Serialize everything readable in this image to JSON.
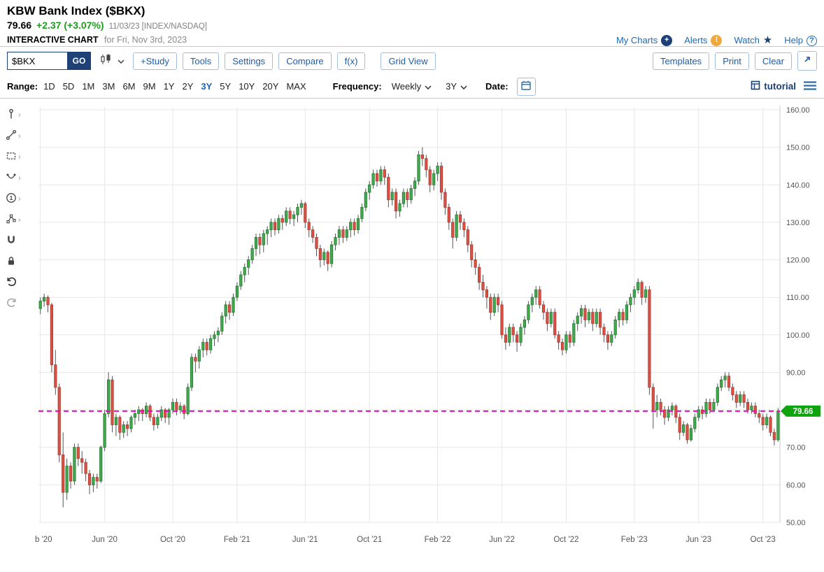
{
  "header": {
    "title": "KBW Bank Index ($BKX)",
    "price": "79.66",
    "change": "+2.37 (+3.07%)",
    "quote_meta": "11/03/23 [INDEX/NASDAQ]",
    "chart_label": "INTERACTIVE CHART",
    "chart_sublabel": "for Fri, Nov 3rd, 2023",
    "links": [
      {
        "label": "My Charts",
        "icon": "plus-circle-icon"
      },
      {
        "label": "Alerts",
        "icon": "alert-icon"
      },
      {
        "label": "Watch",
        "icon": "star-icon"
      },
      {
        "label": "Help",
        "icon": "help-icon"
      }
    ]
  },
  "toolbar": {
    "symbol_value": "$BKX",
    "go_label": "GO",
    "left_buttons": [
      "+Study",
      "Tools",
      "Settings",
      "Compare",
      "f(x)"
    ],
    "view_buttons": [
      "Grid View"
    ],
    "right_buttons": [
      "Templates",
      "Print",
      "Clear"
    ]
  },
  "rangebar": {
    "range_label": "Range:",
    "options": [
      "1D",
      "5D",
      "1M",
      "3M",
      "6M",
      "9M",
      "1Y",
      "2Y",
      "3Y",
      "5Y",
      "10Y",
      "20Y",
      "MAX"
    ],
    "selected": "3Y",
    "frequency_label": "Frequency:",
    "frequency_value": "Weekly",
    "period_value": "3Y",
    "date_label": "Date:",
    "tutorial_label": "tutorial"
  },
  "sidebar": {
    "tools": [
      {
        "icon": "annotation-tool-icon",
        "chevron": true
      },
      {
        "icon": "trendline-tool-icon",
        "chevron": true
      },
      {
        "icon": "shape-tool-icon",
        "chevron": true
      },
      {
        "icon": "arc-tool-icon",
        "chevron": true
      },
      {
        "icon": "number-annotation-icon",
        "chevron": true
      },
      {
        "icon": "pattern-tool-icon",
        "chevron": true
      },
      {
        "icon": "magnet-icon",
        "chevron": false
      },
      {
        "icon": "lock-icon",
        "chevron": false
      },
      {
        "icon": "undo-icon",
        "chevron": false
      },
      {
        "icon": "redo-icon",
        "chevron": false
      }
    ]
  },
  "chart_data": {
    "type": "candlestick",
    "title": "KBW Bank Index ($BKX)",
    "frequency": "Weekly",
    "range": "3Y",
    "ylim": [
      50,
      160
    ],
    "y_ticks": [
      160,
      150,
      140,
      130,
      120,
      110,
      100,
      90,
      80,
      70,
      60,
      50
    ],
    "x_ticks": [
      {
        "i": 0,
        "label": "b '20"
      },
      {
        "i": 17,
        "label": "Jun '20"
      },
      {
        "i": 35,
        "label": "Oct '20"
      },
      {
        "i": 52,
        "label": "Feb '21"
      },
      {
        "i": 70,
        "label": "Jun '21"
      },
      {
        "i": 87,
        "label": "Oct '21"
      },
      {
        "i": 105,
        "label": "Feb '22"
      },
      {
        "i": 122,
        "label": "Jun '22"
      },
      {
        "i": 139,
        "label": "Oct '22"
      },
      {
        "i": 157,
        "label": "Feb '23"
      },
      {
        "i": 174,
        "label": "Jun '23"
      },
      {
        "i": 191,
        "label": "Oct '23"
      }
    ],
    "last_price": 79.66,
    "last_price_line": {
      "value": 79.66,
      "color": "#f500cc",
      "label": "79.66",
      "label_bg": "#10a310"
    },
    "colors": {
      "up_fill": "#44a94f",
      "up_stroke": "#1e7a2e",
      "down_fill": "#dd5145",
      "down_stroke": "#a63a30",
      "wick": "#555555",
      "grid": "#e7e7e7",
      "axis_text": "#555555",
      "border": "#cccccc"
    },
    "candles": [
      [
        107,
        110,
        105.5,
        109
      ],
      [
        109,
        111,
        107.5,
        110
      ],
      [
        110,
        110.5,
        106,
        108
      ],
      [
        108,
        108.5,
        90,
        92
      ],
      [
        92,
        96,
        84,
        86
      ],
      [
        86,
        87,
        66,
        68
      ],
      [
        68,
        74,
        54,
        58
      ],
      [
        58,
        67,
        56,
        65
      ],
      [
        65,
        66,
        59,
        61
      ],
      [
        61,
        71,
        60,
        70
      ],
      [
        70,
        71,
        65,
        67
      ],
      [
        67,
        69,
        63,
        66
      ],
      [
        66,
        67,
        61,
        63
      ],
      [
        63,
        64,
        57.5,
        60
      ],
      [
        60,
        63,
        58,
        62
      ],
      [
        62,
        63,
        59,
        61
      ],
      [
        61,
        70.5,
        60.5,
        70
      ],
      [
        70,
        80,
        69,
        79
      ],
      [
        79,
        90,
        78,
        88
      ],
      [
        88,
        89,
        74,
        76
      ],
      [
        76,
        79,
        73,
        78
      ],
      [
        78,
        78.5,
        72,
        74
      ],
      [
        74,
        77,
        72.5,
        76
      ],
      [
        76,
        77,
        73,
        75
      ],
      [
        75,
        78.5,
        74,
        78
      ],
      [
        78,
        80,
        76,
        79
      ],
      [
        79,
        81,
        77,
        80
      ],
      [
        80,
        80.5,
        77,
        79
      ],
      [
        79,
        82,
        78,
        81
      ],
      [
        81,
        81.5,
        77,
        78
      ],
      [
        78,
        79,
        74.5,
        76
      ],
      [
        76,
        79,
        75,
        78
      ],
      [
        78,
        81,
        77,
        80
      ],
      [
        80,
        80.5,
        76.5,
        78
      ],
      [
        78,
        80.5,
        76,
        80
      ],
      [
        80,
        83,
        79,
        82
      ],
      [
        82,
        83,
        78.5,
        80
      ],
      [
        80,
        82,
        79,
        81
      ],
      [
        81,
        81.5,
        77.5,
        79
      ],
      [
        79,
        87,
        78.5,
        86
      ],
      [
        86,
        95,
        85,
        94
      ],
      [
        94,
        95,
        90,
        93
      ],
      [
        93,
        97,
        91,
        96
      ],
      [
        96,
        99,
        94,
        98
      ],
      [
        98,
        99,
        94.5,
        96
      ],
      [
        96,
        100,
        95,
        99
      ],
      [
        99,
        101,
        97,
        100
      ],
      [
        100,
        102,
        98,
        101
      ],
      [
        101,
        106,
        100,
        105
      ],
      [
        105,
        109,
        103,
        108
      ],
      [
        108,
        109,
        104,
        106
      ],
      [
        106,
        111,
        105,
        110
      ],
      [
        110,
        114,
        109,
        113
      ],
      [
        113,
        117,
        112,
        116
      ],
      [
        116,
        119,
        114,
        118
      ],
      [
        118,
        121,
        116,
        120
      ],
      [
        120,
        124,
        119,
        123
      ],
      [
        123,
        127,
        121,
        126
      ],
      [
        126,
        127,
        121.5,
        124
      ],
      [
        124,
        128,
        122,
        127
      ],
      [
        127,
        129,
        124,
        128
      ],
      [
        128,
        131,
        126,
        130
      ],
      [
        130,
        131,
        126.5,
        128
      ],
      [
        128,
        132,
        127,
        131
      ],
      [
        131,
        132,
        128,
        130
      ],
      [
        130,
        134,
        129,
        133
      ],
      [
        133,
        134,
        129.5,
        131
      ],
      [
        131,
        133,
        129,
        132
      ],
      [
        132,
        135,
        130,
        134
      ],
      [
        134,
        136,
        132,
        135
      ],
      [
        135,
        135.5,
        128.5,
        130
      ],
      [
        130,
        131,
        126,
        128
      ],
      [
        128,
        129,
        124.5,
        126
      ],
      [
        126,
        127,
        121,
        123
      ],
      [
        123,
        124,
        118,
        120
      ],
      [
        120,
        123,
        118.5,
        122
      ],
      [
        122,
        122.5,
        117,
        119
      ],
      [
        119,
        125,
        118,
        124
      ],
      [
        124,
        127,
        122.5,
        126
      ],
      [
        126,
        129,
        124,
        128
      ],
      [
        128,
        129,
        124.5,
        126
      ],
      [
        126,
        129,
        125,
        128
      ],
      [
        128,
        131,
        126,
        130
      ],
      [
        130,
        131,
        126.5,
        128
      ],
      [
        128,
        132,
        127,
        131
      ],
      [
        131,
        135,
        130,
        134
      ],
      [
        134,
        139,
        133,
        138
      ],
      [
        138,
        141,
        136,
        140
      ],
      [
        140,
        144,
        139,
        143
      ],
      [
        143,
        144,
        139.5,
        141
      ],
      [
        141,
        145,
        140,
        144
      ],
      [
        144,
        145,
        140,
        142
      ],
      [
        142,
        143,
        134,
        136
      ],
      [
        136,
        139,
        134.5,
        138
      ],
      [
        138,
        139,
        131,
        133
      ],
      [
        133,
        136,
        131.5,
        135
      ],
      [
        135,
        139,
        134,
        138
      ],
      [
        138,
        139,
        134,
        136
      ],
      [
        136,
        140,
        135,
        139
      ],
      [
        139,
        142,
        137,
        141
      ],
      [
        141,
        149,
        140,
        148
      ],
      [
        148,
        150,
        145,
        147
      ],
      [
        147,
        148,
        142,
        144
      ],
      [
        144,
        145,
        138,
        140
      ],
      [
        140,
        144,
        138.5,
        143
      ],
      [
        143,
        146,
        141,
        145
      ],
      [
        145,
        146,
        136,
        138
      ],
      [
        138,
        139,
        132,
        134
      ],
      [
        134,
        135,
        128,
        130
      ],
      [
        130,
        131,
        123,
        126
      ],
      [
        126,
        133,
        125,
        132
      ],
      [
        132,
        133,
        128,
        130
      ],
      [
        130,
        131,
        126,
        128
      ],
      [
        128,
        129,
        122,
        124
      ],
      [
        124,
        125,
        118,
        120
      ],
      [
        120,
        122,
        116,
        118
      ],
      [
        118,
        119,
        112,
        114
      ],
      [
        114,
        116,
        110,
        112
      ],
      [
        112,
        113,
        107,
        110
      ],
      [
        110,
        111,
        104,
        106
      ],
      [
        106,
        111,
        105,
        110
      ],
      [
        110,
        111,
        106,
        108
      ],
      [
        108,
        109,
        99,
        100
      ],
      [
        100,
        102,
        96,
        98
      ],
      [
        98,
        103,
        97,
        102
      ],
      [
        102,
        103,
        98,
        100
      ],
      [
        100,
        101,
        95.5,
        98
      ],
      [
        98,
        103,
        97,
        102
      ],
      [
        102,
        105,
        100,
        104
      ],
      [
        104,
        109,
        103,
        108
      ],
      [
        108,
        111,
        106,
        110
      ],
      [
        110,
        113,
        108,
        112
      ],
      [
        112,
        113,
        107,
        108
      ],
      [
        108,
        109,
        104,
        106
      ],
      [
        106,
        107,
        101,
        103
      ],
      [
        103,
        107,
        102,
        106
      ],
      [
        106,
        107,
        99,
        100
      ],
      [
        100,
        101,
        96,
        98
      ],
      [
        98,
        99,
        94.5,
        96
      ],
      [
        96,
        101,
        95,
        100
      ],
      [
        100,
        101,
        96.5,
        98
      ],
      [
        98,
        104,
        97,
        103
      ],
      [
        103,
        106,
        101,
        105
      ],
      [
        105,
        108,
        103,
        107
      ],
      [
        107,
        108,
        102,
        104
      ],
      [
        104,
        107,
        103,
        106
      ],
      [
        106,
        107,
        101,
        103
      ],
      [
        103,
        107,
        102,
        106
      ],
      [
        106,
        107,
        100,
        102
      ],
      [
        102,
        103,
        98,
        100
      ],
      [
        100,
        101,
        96,
        98
      ],
      [
        98,
        101,
        97,
        100
      ],
      [
        100,
        105,
        99,
        104
      ],
      [
        104,
        107,
        102,
        106
      ],
      [
        106,
        107,
        102.5,
        104
      ],
      [
        104,
        109,
        103,
        108
      ],
      [
        108,
        111,
        106,
        110
      ],
      [
        110,
        113,
        108,
        112
      ],
      [
        112,
        115,
        111,
        114
      ],
      [
        114,
        114.5,
        108,
        110
      ],
      [
        110,
        113,
        108.5,
        112
      ],
      [
        112,
        113,
        84,
        86
      ],
      [
        86,
        87,
        75,
        80
      ],
      [
        80,
        84,
        78,
        82
      ],
      [
        82,
        83,
        78.5,
        80
      ],
      [
        80,
        81,
        76,
        78
      ],
      [
        78,
        81,
        77,
        80
      ],
      [
        80,
        82,
        78.5,
        81
      ],
      [
        81,
        81.5,
        76.5,
        78
      ],
      [
        78,
        79,
        72,
        74
      ],
      [
        74,
        77,
        73,
        76
      ],
      [
        76,
        76.5,
        71,
        72
      ],
      [
        72,
        76,
        71.5,
        75
      ],
      [
        75,
        79,
        74,
        78
      ],
      [
        78,
        81,
        77,
        80
      ],
      [
        80,
        81,
        77.5,
        79
      ],
      [
        79,
        83,
        78,
        82
      ],
      [
        82,
        83,
        79,
        80
      ],
      [
        80,
        83,
        79.5,
        82
      ],
      [
        82,
        87,
        81,
        86
      ],
      [
        86,
        89,
        85,
        88
      ],
      [
        88,
        90,
        86,
        89
      ],
      [
        89,
        90,
        85,
        86
      ],
      [
        86,
        87,
        82.5,
        84
      ],
      [
        84,
        85,
        80.5,
        82
      ],
      [
        82,
        85,
        81,
        84
      ],
      [
        84,
        85,
        80.5,
        82
      ],
      [
        82,
        83,
        79,
        80
      ],
      [
        80,
        82,
        79,
        81
      ],
      [
        81,
        82,
        78,
        79
      ],
      [
        79,
        80,
        76.5,
        78
      ],
      [
        78,
        79,
        74.5,
        76
      ],
      [
        76,
        79,
        75,
        78
      ],
      [
        78,
        78.5,
        73,
        74
      ],
      [
        74,
        75,
        70.5,
        72
      ],
      [
        72,
        80.5,
        71.5,
        79.66
      ]
    ]
  }
}
